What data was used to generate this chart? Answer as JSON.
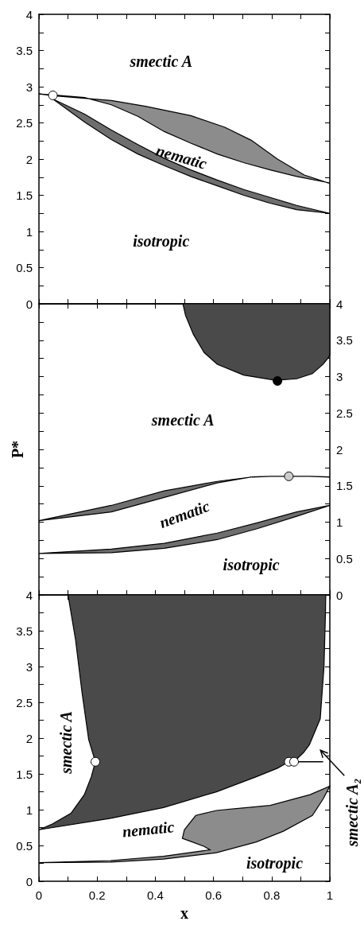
{
  "chart_data": [
    {
      "type": "area",
      "tick_labels": "y",
      "xlim": [
        0,
        1
      ],
      "ylim": [
        0,
        4
      ],
      "xticks": [
        0,
        {
          "value": 0.1,
          "label": null
        },
        {
          "value": 0.2,
          "label": null
        },
        {
          "value": 0.3,
          "label": null
        },
        {
          "value": 0.4,
          "label": null
        },
        {
          "value": 0.5,
          "label": null
        },
        {
          "value": 0.6,
          "label": null
        },
        {
          "value": 0.7,
          "label": null
        },
        {
          "value": 0.8,
          "label": null
        },
        {
          "value": 0.9,
          "label": null
        },
        {
          "value": 1,
          "label": null
        }
      ],
      "yticks": [
        0,
        {
          "value": 0.25,
          "label": null
        },
        0.5,
        {
          "value": 0.75,
          "label": null
        },
        1,
        {
          "value": 1.25,
          "label": null
        },
        1.5,
        {
          "value": 1.75,
          "label": null
        },
        2,
        {
          "value": 2.25,
          "label": null
        },
        2.5,
        {
          "value": 2.75,
          "label": null
        },
        3,
        {
          "value": 3.25,
          "label": null
        },
        3.5,
        {
          "value": 3.75,
          "label": null
        },
        4
      ],
      "series": [
        {
          "color": "#8c8c8c",
          "x": [
            0,
            0.066,
            0.249,
            0.366,
            0.522,
            0.639,
            0.73,
            0.82,
            0.912,
            0.995,
            1,
            0.886,
            0.795,
            0.704,
            0.613,
            0.522,
            0.431,
            0.34,
            0.249,
            0.157,
            0.066
          ],
          "values": [
            2.9,
            2.87,
            2.81,
            2.73,
            2.6,
            2.44,
            2.26,
            2.0,
            1.78,
            1.67,
            1.67,
            1.76,
            1.85,
            1.95,
            2.07,
            2.22,
            2.38,
            2.59,
            2.75,
            2.85,
            2.88
          ]
        },
        {
          "color": "#6e6e6e",
          "x": [
            0.048,
            0.157,
            0.249,
            0.34,
            0.431,
            0.522,
            0.613,
            0.704,
            0.795,
            0.886,
            1,
            0.886,
            0.795,
            0.704,
            0.613,
            0.522,
            0.431,
            0.34,
            0.249,
            0.157
          ],
          "values": [
            2.83,
            2.62,
            2.4,
            2.2,
            2.01,
            1.85,
            1.71,
            1.58,
            1.47,
            1.36,
            1.25,
            1.3,
            1.39,
            1.5,
            1.63,
            1.76,
            1.91,
            2.07,
            2.27,
            2.51
          ]
        },
        {
          "type": "scatter",
          "marker": "circle",
          "color": "#ffffff",
          "x": [
            0.048
          ],
          "values": [
            2.88
          ]
        }
      ],
      "annotations": [
        "smectic A",
        "nematic",
        "isotropic"
      ]
    },
    {
      "type": "area",
      "tick_labels": "y",
      "ylabel": "P*",
      "xlim": [
        0,
        1
      ],
      "ylim": [
        0,
        4
      ],
      "xticks": [
        0,
        {
          "value": 0.1,
          "label": null
        },
        {
          "value": 0.2,
          "label": null
        },
        {
          "value": 0.3,
          "label": null
        },
        {
          "value": 0.4,
          "label": null
        },
        {
          "value": 0.5,
          "label": null
        },
        {
          "value": 0.6,
          "label": null
        },
        {
          "value": 0.7,
          "label": null
        },
        {
          "value": 0.8,
          "label": null
        },
        {
          "value": 0.9,
          "label": null
        },
        {
          "value": 1,
          "label": null
        }
      ],
      "yticks": [
        0,
        {
          "value": 0.25,
          "label": null
        },
        0.5,
        {
          "value": 0.75,
          "label": null
        },
        1,
        {
          "value": 1.25,
          "label": null
        },
        1.5,
        {
          "value": 1.75,
          "label": null
        },
        2,
        {
          "value": 2.25,
          "label": null
        },
        2.5,
        {
          "value": 2.75,
          "label": null
        },
        3,
        {
          "value": 3.25,
          "label": null
        },
        3.5,
        {
          "value": 3.75,
          "label": null
        },
        4
      ],
      "series": [
        {
          "color": "#4a4a4a",
          "x": [
            0.495,
            0.504,
            0.531,
            0.568,
            0.613,
            0.704,
            0.813,
            0.886,
            0.94,
            0.977,
            0.995,
            1,
            1
          ],
          "values": [
            4,
            3.84,
            3.58,
            3.33,
            3.17,
            3.02,
            2.95,
            2.97,
            3.04,
            3.17,
            3.26,
            3.3,
            4
          ]
        },
        {
          "color": "#6e6e6e",
          "x": [
            0,
            0.249,
            0.431,
            0.613,
            0.731,
            0.613,
            0.431,
            0.249
          ],
          "values": [
            1.02,
            1.23,
            1.43,
            1.56,
            1.62,
            1.54,
            1.34,
            1.14
          ]
        },
        {
          "color": "#6e6e6e",
          "x": [
            0,
            0.249,
            0.431,
            0.613,
            0.75,
            0.886,
            1,
            0.886,
            0.75,
            0.613,
            0.431,
            0.249
          ],
          "values": [
            0.57,
            0.63,
            0.71,
            0.85,
            0.99,
            1.14,
            1.23,
            1.08,
            0.91,
            0.76,
            0.64,
            0.58
          ]
        },
        {
          "type": "line",
          "color": "#000000",
          "x": [
            0.731,
            0.795,
            0.859,
            0.93,
            1
          ],
          "values": [
            1.62,
            1.63,
            1.63,
            1.63,
            1.62
          ]
        },
        {
          "type": "scatter",
          "marker": "circle",
          "color": "#000000",
          "x": [
            0.82
          ],
          "values": [
            2.94
          ]
        },
        {
          "type": "scatter",
          "marker": "circle",
          "color": "#cccccc",
          "x": [
            0.859
          ],
          "values": [
            1.63
          ]
        }
      ],
      "annotations": [
        "smectic A",
        "nematic",
        "isotropic"
      ]
    },
    {
      "type": "area",
      "xlabel": "x",
      "xlim": [
        0,
        1
      ],
      "ylim": [
        0,
        4
      ],
      "xticks": [
        0,
        {
          "value": 0.1,
          "label": null
        },
        0.2,
        {
          "value": 0.3,
          "label": null
        },
        0.4,
        {
          "value": 0.5,
          "label": null
        },
        0.6,
        {
          "value": 0.7,
          "label": null
        },
        0.8,
        {
          "value": 0.9,
          "label": null
        },
        1
      ],
      "yticks": [
        0,
        {
          "value": 0.25,
          "label": null
        },
        0.5,
        {
          "value": 0.75,
          "label": null
        },
        1,
        {
          "value": 1.25,
          "label": null
        },
        1.5,
        {
          "value": 1.75,
          "label": null
        },
        2,
        {
          "value": 2.25,
          "label": null
        },
        2.5,
        {
          "value": 2.75,
          "label": null
        },
        3,
        {
          "value": 3.25,
          "label": null
        },
        3.5,
        {
          "value": 3.75,
          "label": null
        },
        4
      ],
      "series": [
        {
          "color": "#4a4a4a",
          "x": [
            0.1,
            0.126,
            0.148,
            0.171,
            0.194,
            0.18,
            0.156,
            0.11,
            0.046,
            0,
            0.246,
            0.428,
            0.61,
            0.747,
            0.82,
            0.859,
            0.877,
            0.91,
            0.93,
            0.967,
            0.98,
            0.985,
            0.986
          ],
          "values": [
            4,
            3.37,
            2.64,
            1.98,
            1.67,
            1.46,
            1.21,
            0.95,
            0.8,
            0.72,
            0.88,
            1.03,
            1.25,
            1.46,
            1.58,
            1.67,
            1.67,
            1.8,
            1.91,
            2.27,
            3.0,
            3.75,
            4
          ]
        },
        {
          "color": "#8c8c8c",
          "x": [
            0,
            0.246,
            0.428,
            0.588,
            0.567,
            0.52,
            0.493,
            0.5,
            0.539,
            0.61,
            0.795,
            0.932,
            1,
            0.977,
            0.94,
            0.84,
            0.747,
            0.61,
            0.428,
            0.246
          ],
          "values": [
            0.26,
            0.29,
            0.35,
            0.44,
            0.49,
            0.56,
            0.6,
            0.72,
            0.92,
            0.99,
            1.06,
            1.21,
            1.33,
            1.15,
            0.92,
            0.7,
            0.55,
            0.4,
            0.31,
            0.27
          ]
        },
        {
          "type": "line",
          "color": "#000000",
          "x": [
            0.877,
            0.977
          ],
          "values": [
            1.67,
            1.67
          ]
        },
        {
          "type": "scatter",
          "marker": "circle",
          "color": "#ffffff",
          "x": [
            0.194,
            0.859,
            0.877
          ],
          "values": [
            1.67,
            1.67,
            1.67
          ]
        }
      ],
      "annotations": [
        "smectic A",
        "nematic",
        "isotropic",
        "smectic A₂"
      ]
    }
  ]
}
